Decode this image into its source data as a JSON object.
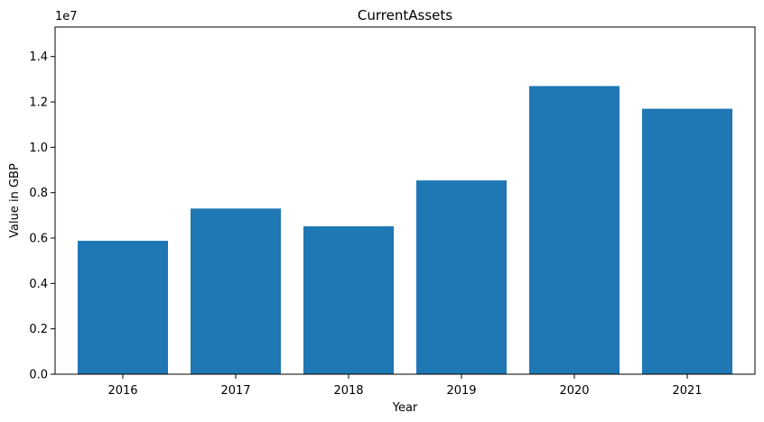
{
  "chart_data": {
    "type": "bar",
    "title": "CurrentAssets",
    "xlabel": "Year",
    "ylabel": "Value in GBP",
    "y_offset_text": "1e7",
    "categories": [
      "2016",
      "2017",
      "2018",
      "2019",
      "2020",
      "2021"
    ],
    "values": [
      5880000,
      7300000,
      6520000,
      8540000,
      12700000,
      11700000
    ],
    "ylim": [
      0,
      15300000
    ],
    "yticks": [
      0,
      2000000,
      4000000,
      6000000,
      8000000,
      10000000,
      12000000,
      14000000
    ],
    "ytick_labels": [
      "0.0",
      "0.2",
      "0.4",
      "0.6",
      "0.8",
      "1.0",
      "1.2",
      "1.4"
    ],
    "grid": false,
    "bar_color": "#1f77b4"
  }
}
